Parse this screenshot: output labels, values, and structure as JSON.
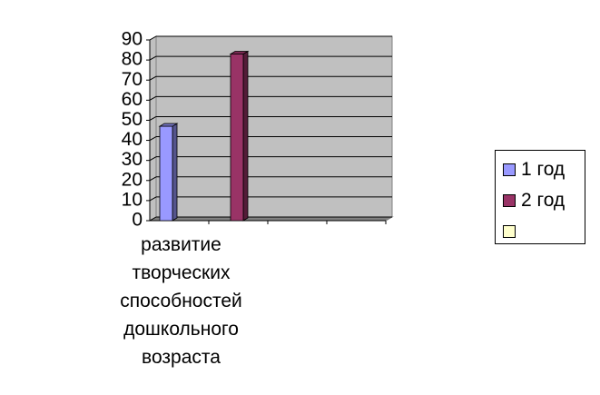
{
  "chart_data": {
    "type": "bar3d",
    "categories": [
      "развитие\nтворческих\nспособностей\nдошкольного\nвозраста",
      null,
      null,
      null
    ],
    "series": [
      {
        "name": "1 год",
        "color": "#9999ff",
        "values": [
          47,
          null,
          null,
          null
        ]
      },
      {
        "name": "2 год",
        "color": "#993366",
        "values": [
          null,
          83,
          null,
          null
        ]
      },
      {
        "name": null,
        "color": "#ffffcc",
        "values": [
          null,
          null,
          null,
          null
        ]
      }
    ],
    "ylim": [
      0,
      90
    ],
    "yticks": [
      0,
      10,
      20,
      30,
      40,
      50,
      60,
      70,
      80,
      90
    ],
    "grid": true,
    "legend": "right"
  }
}
